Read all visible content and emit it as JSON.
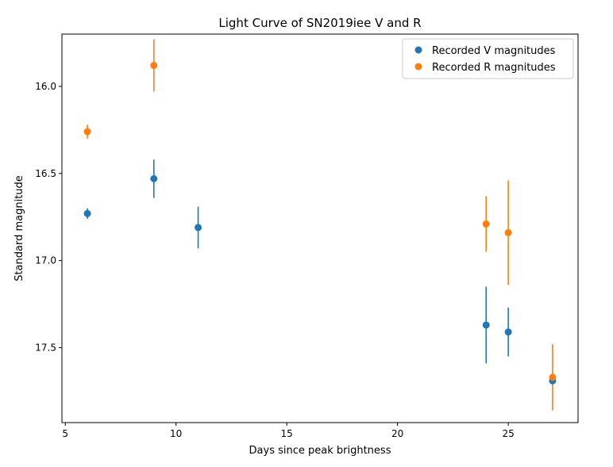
{
  "chart_data": {
    "type": "scatter",
    "title": "Light Curve of SN2019iee V and R",
    "xlabel": "Days since peak brightness",
    "ylabel": "Standard magnitude",
    "xlim": [
      4.85,
      28.15
    ],
    "ylim": [
      17.93,
      15.7
    ],
    "y_inverted": true,
    "xticks": [
      5,
      10,
      15,
      20,
      25
    ],
    "xtick_labels": [
      "5",
      "10",
      "15",
      "20",
      "25"
    ],
    "yticks": [
      16.0,
      16.5,
      17.0,
      17.5
    ],
    "ytick_labels": [
      "16.0",
      "16.5",
      "17.0",
      "17.5"
    ],
    "grid": false,
    "legend_position": "top-right",
    "series": [
      {
        "name": "Recorded V magnitudes",
        "color": "#1f77b4",
        "points": [
          {
            "x": 6,
            "y": 16.73,
            "err": 0.03
          },
          {
            "x": 9,
            "y": 16.53,
            "err": 0.11
          },
          {
            "x": 11,
            "y": 16.81,
            "err": 0.12
          },
          {
            "x": 24,
            "y": 17.37,
            "err": 0.22
          },
          {
            "x": 25,
            "y": 17.41,
            "err": 0.14
          },
          {
            "x": 27,
            "y": 17.69,
            "err": 0.0
          }
        ]
      },
      {
        "name": "Recorded R magnitudes",
        "color": "#ff7f0e",
        "points": [
          {
            "x": 6,
            "y": 16.26,
            "err": 0.04
          },
          {
            "x": 9,
            "y": 15.88,
            "err": 0.15
          },
          {
            "x": 24,
            "y": 16.79,
            "err": 0.16
          },
          {
            "x": 25,
            "y": 16.84,
            "err": 0.3
          },
          {
            "x": 27,
            "y": 17.67,
            "err": 0.19
          }
        ]
      }
    ]
  }
}
